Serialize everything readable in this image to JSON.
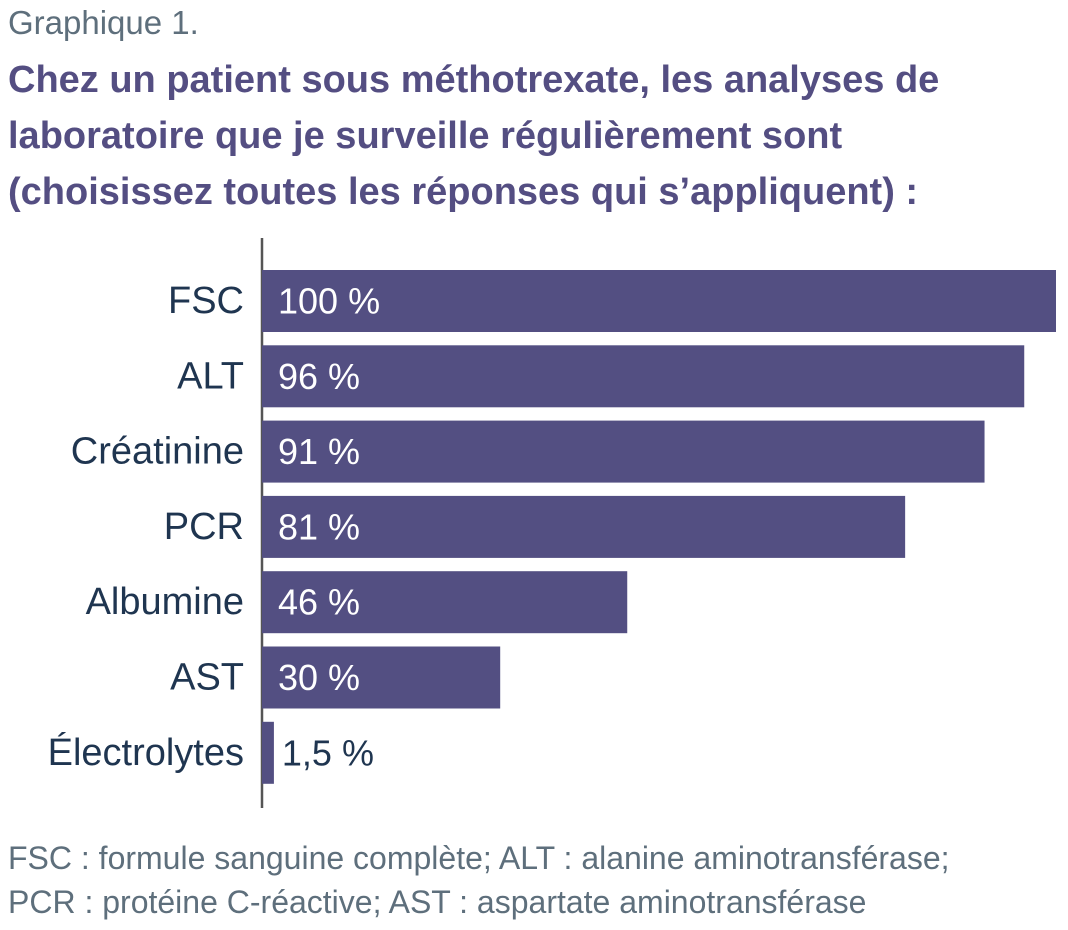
{
  "header": {
    "graph_label": "Graphique 1.",
    "title_lines": [
      "Chez un patient sous méthotrexate, les analyses de",
      "laboratoire que je surveille régulièrement sont",
      "(choisissez toutes les réponses qui s’appliquent) :"
    ]
  },
  "chart_data": {
    "type": "bar",
    "orientation": "horizontal",
    "title": "Chez un patient sous méthotrexate, les analyses de laboratoire que je surveille régulièrement sont (choisissez toutes les réponses qui s’appliquent) :",
    "categories": [
      "FSC",
      "ALT",
      "Créatinine",
      "PCR",
      "Albumine",
      "AST",
      "Électrolytes"
    ],
    "values": [
      100,
      96,
      91,
      81,
      46,
      30,
      1.5
    ],
    "value_labels": [
      "100 %",
      "96 %",
      "91 %",
      "81 %",
      "46 %",
      "30 %",
      "1,5 %"
    ],
    "xlim": [
      0,
      100
    ],
    "bar_color": "#534f82",
    "inside_label_color": "#ffffff",
    "outside_label_color": "#1f3550",
    "axis_color": "#555555",
    "grid": false,
    "legend": "none"
  },
  "footnote": {
    "lines": [
      "FSC : formule sanguine complète; ALT : alanine aminotransférase;",
      "PCR : protéine C-réactive; AST : aspartate aminotransférase"
    ]
  }
}
